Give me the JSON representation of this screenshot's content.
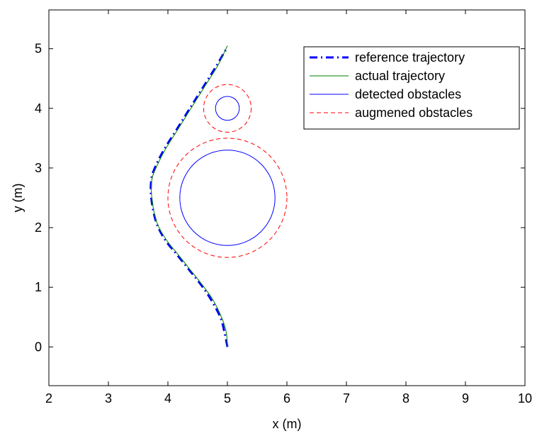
{
  "chart_data": {
    "type": "line",
    "title": "",
    "xlabel": "x (m)",
    "ylabel": "y (m)",
    "xlim": [
      2,
      10
    ],
    "ylim": [
      -0.65,
      5.65
    ],
    "xticks": [
      2,
      3,
      4,
      5,
      6,
      7,
      8,
      9,
      10
    ],
    "yticks": [
      0,
      1,
      2,
      3,
      4,
      5
    ],
    "grid": false,
    "legend_position": "top-right",
    "series": [
      {
        "name": "reference trajectory",
        "style": "dash-dot",
        "color": "#0000ff",
        "x": [
          5.0,
          4.95,
          4.88,
          4.72,
          4.55,
          4.35,
          4.15,
          3.95,
          3.8,
          3.72,
          3.72,
          3.78,
          3.93,
          4.15,
          4.4,
          4.62,
          4.82,
          5.0
        ],
        "y": [
          0.0,
          0.25,
          0.5,
          0.8,
          1.05,
          1.3,
          1.55,
          1.8,
          2.1,
          2.5,
          2.8,
          3.0,
          3.3,
          3.65,
          4.05,
          4.4,
          4.72,
          5.03
        ]
      },
      {
        "name": "actual trajectory",
        "style": "solid",
        "color": "#008000",
        "x": [
          5.0,
          4.98,
          4.9,
          4.75,
          4.57,
          4.37,
          4.17,
          3.97,
          3.81,
          3.73,
          3.73,
          3.8,
          3.95,
          4.17,
          4.42,
          4.64,
          4.84,
          5.0
        ],
        "y": [
          0.0,
          0.25,
          0.5,
          0.8,
          1.05,
          1.3,
          1.55,
          1.8,
          2.1,
          2.5,
          2.8,
          3.0,
          3.3,
          3.65,
          4.05,
          4.4,
          4.72,
          5.05
        ]
      }
    ],
    "obstacles": [
      {
        "name": "detected obstacles",
        "style": "solid",
        "color": "#0000ff",
        "circles": [
          {
            "cx": 5.0,
            "cy": 4.0,
            "r": 0.2
          },
          {
            "cx": 5.0,
            "cy": 2.5,
            "r": 0.8
          }
        ]
      },
      {
        "name": "augmened obstacles",
        "style": "dashed",
        "color": "#ff0000",
        "circles": [
          {
            "cx": 5.0,
            "cy": 4.0,
            "r": 0.4
          },
          {
            "cx": 5.0,
            "cy": 2.5,
            "r": 1.0
          }
        ]
      }
    ],
    "legend": [
      "reference trajectory",
      "actual trajectory",
      "detected obstacles",
      "augmened obstacles"
    ]
  }
}
